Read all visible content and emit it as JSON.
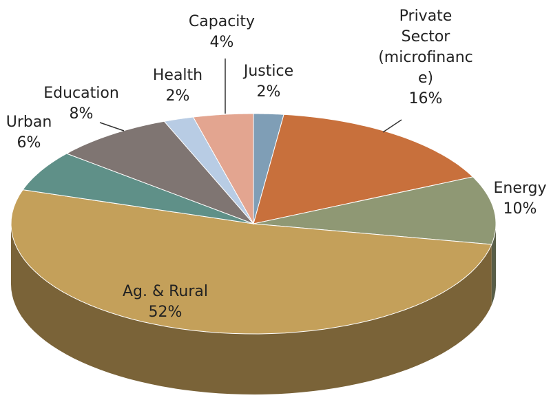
{
  "chart_data": {
    "type": "pie3d",
    "categories": [
      "Justice",
      "Private Sector (microfinance)",
      "Energy",
      "Ag. & Rural",
      "Urban",
      "Education",
      "Health",
      "Capacity"
    ],
    "values": [
      2,
      16,
      10,
      52,
      6,
      8,
      2,
      4
    ],
    "value_labels": [
      "2%",
      "16%",
      "10%",
      "52%",
      "6%",
      "8%",
      "2%",
      "4%"
    ],
    "colors": [
      "#7f9eb6",
      "#c8703c",
      "#8f9874",
      "#c4a05a",
      "#5f9088",
      "#7f7572",
      "#b8cce4",
      "#e3a590"
    ]
  }
}
